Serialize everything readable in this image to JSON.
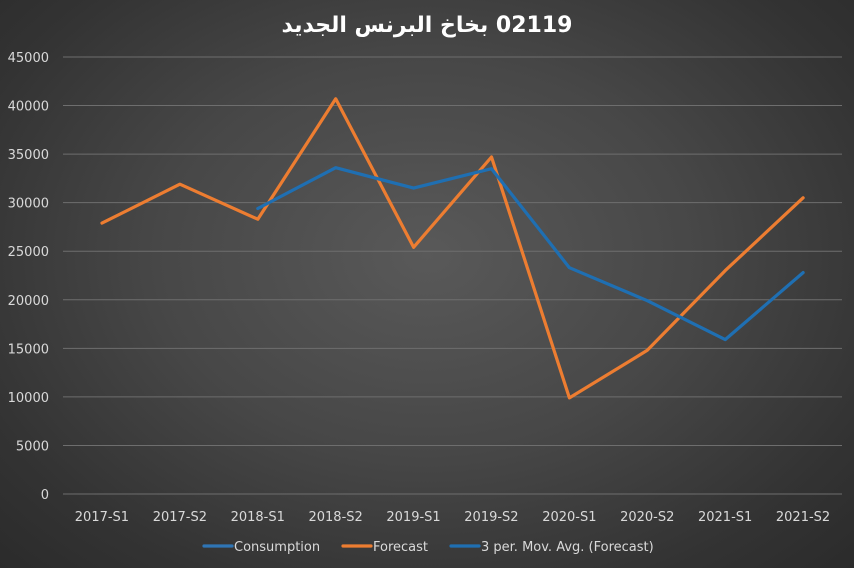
{
  "chart_data": {
    "type": "line",
    "title": "02119  بخاخ البرنس الجديد",
    "xlabel": "",
    "ylabel": "",
    "ylim": [
      0,
      45000
    ],
    "yticks": [
      0,
      5000,
      10000,
      15000,
      20000,
      25000,
      30000,
      35000,
      40000,
      45000
    ],
    "categories": [
      "2017-S1",
      "2017-S2",
      "2018-S1",
      "2018-S2",
      "2019-S1",
      "2019-S2",
      "2020-S1",
      "2020-S2",
      "2021-S1",
      "2021-S2"
    ],
    "grid": true,
    "legend_position": "bottom",
    "series": [
      {
        "name": "Consumption",
        "color": "#2f75b5",
        "values": [
          null,
          null,
          null,
          null,
          null,
          null,
          null,
          null,
          null,
          null
        ]
      },
      {
        "name": "Forecast",
        "color": "#ed7d31",
        "values": [
          27900,
          31900,
          28300,
          40700,
          25400,
          34700,
          9900,
          14800,
          23000,
          30500
        ]
      },
      {
        "name": "3 per. Mov. Avg. (Forecast)",
        "color": "#1f6fb2",
        "values": [
          null,
          null,
          29400,
          33600,
          31500,
          33500,
          23300,
          19900,
          15900,
          22800
        ]
      }
    ]
  }
}
